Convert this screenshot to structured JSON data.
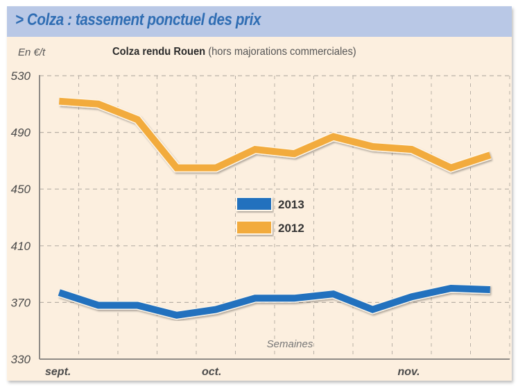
{
  "header": {
    "title": "> Colza : tassement ponctuel des prix"
  },
  "chart_data": {
    "type": "line",
    "title": "Colza rendu Rouen",
    "subtitle_note": "(hors majorations commerciales)",
    "ylabel": "En €/t",
    "xlabel": "Semaines",
    "ylim": [
      330,
      530
    ],
    "yticks": [
      330,
      370,
      410,
      450,
      490,
      530
    ],
    "ytick_labels": [
      "330",
      "370",
      "410",
      "450",
      "490",
      "530"
    ],
    "month_labels": [
      {
        "label": "sept.",
        "week": 0
      },
      {
        "label": "oct.",
        "week": 4
      },
      {
        "label": "nov.",
        "week": 9
      }
    ],
    "x": [
      1,
      2,
      3,
      4,
      5,
      6,
      7,
      8,
      9,
      10,
      11,
      12
    ],
    "grid": true,
    "legend_position": "center",
    "series": [
      {
        "name": "2013",
        "color": "#2471be",
        "values": [
          377,
          368,
          368,
          361,
          365,
          373,
          373,
          376,
          365,
          374,
          380,
          379
        ]
      },
      {
        "name": "2012",
        "color": "#f2ab3c",
        "values": [
          512,
          510,
          499,
          465,
          465,
          478,
          475,
          487,
          480,
          478,
          465,
          474
        ]
      }
    ]
  }
}
